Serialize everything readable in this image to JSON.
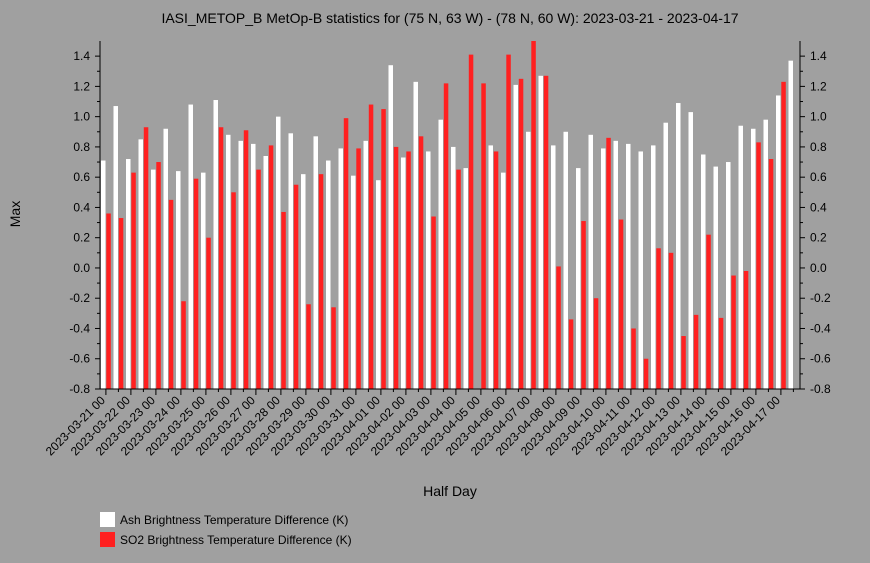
{
  "chart_data": {
    "type": "bar",
    "title": "IASI_METOP_B MetOp-B statistics for (75 N, 63 W) - (78 N, 60 W): 2023-03-21 - 2023-04-17",
    "xlabel": "Half Day",
    "ylabel": "Max",
    "ylim": [
      -0.8,
      1.5
    ],
    "yticks": [
      -0.8,
      -0.6,
      -0.4,
      -0.2,
      0.0,
      0.2,
      0.4,
      0.6,
      0.8,
      1.0,
      1.2,
      1.4
    ],
    "ytick_labels": [
      "-0.8",
      "-0.6",
      "-0.4",
      "-0.2",
      "0.0",
      "0.2",
      "0.4",
      "0.6",
      "0.8",
      "1.0",
      "1.2",
      "1.4"
    ],
    "grid": false,
    "legend_position": "bottom-left",
    "categories": [
      "2023-03-21 00",
      "2023-03-21 12",
      "2023-03-22 00",
      "2023-03-22 12",
      "2023-03-23 00",
      "2023-03-23 12",
      "2023-03-24 00",
      "2023-03-24 12",
      "2023-03-25 00",
      "2023-03-25 12",
      "2023-03-26 00",
      "2023-03-26 12",
      "2023-03-27 00",
      "2023-03-27 12",
      "2023-03-28 00",
      "2023-03-28 12",
      "2023-03-29 00",
      "2023-03-29 12",
      "2023-03-30 00",
      "2023-03-30 12",
      "2023-03-31 00",
      "2023-03-31 12",
      "2023-04-01 00",
      "2023-04-01 12",
      "2023-04-02 00",
      "2023-04-02 12",
      "2023-04-03 00",
      "2023-04-03 12",
      "2023-04-04 00",
      "2023-04-04 12",
      "2023-04-05 00",
      "2023-04-05 12",
      "2023-04-06 00",
      "2023-04-06 12",
      "2023-04-07 00",
      "2023-04-07 12",
      "2023-04-08 00",
      "2023-04-08 12",
      "2023-04-09 00",
      "2023-04-09 12",
      "2023-04-10 00",
      "2023-04-10 12",
      "2023-04-11 00",
      "2023-04-11 12",
      "2023-04-12 00",
      "2023-04-12 12",
      "2023-04-13 00",
      "2023-04-13 12",
      "2023-04-14 00",
      "2023-04-14 12",
      "2023-04-15 00",
      "2023-04-15 12",
      "2023-04-16 00",
      "2023-04-16 12",
      "2023-04-17 00",
      "2023-04-17 12"
    ],
    "xtick_labels": [
      "2023-03-21 00",
      "2023-03-22 00",
      "2023-03-23 00",
      "2023-03-24 00",
      "2023-03-25 00",
      "2023-03-26 00",
      "2023-03-27 00",
      "2023-03-28 00",
      "2023-03-29 00",
      "2023-03-30 00",
      "2023-03-31 00",
      "2023-04-01 00",
      "2023-04-02 00",
      "2023-04-03 00",
      "2023-04-04 00",
      "2023-04-05 00",
      "2023-04-06 00",
      "2023-04-07 00",
      "2023-04-08 00",
      "2023-04-09 00",
      "2023-04-10 00",
      "2023-04-11 00",
      "2023-04-12 00",
      "2023-04-13 00",
      "2023-04-14 00",
      "2023-04-15 00",
      "2023-04-16 00",
      "2023-04-17 00"
    ],
    "series": [
      {
        "name": "Ash Brightness Temperature Difference (K)",
        "color": "#ffffff",
        "values": [
          0.71,
          1.07,
          0.72,
          0.85,
          0.65,
          0.92,
          0.64,
          1.08,
          0.63,
          1.11,
          0.88,
          0.84,
          0.82,
          0.74,
          1.0,
          0.89,
          0.62,
          0.87,
          0.71,
          0.79,
          0.61,
          0.84,
          0.58,
          1.34,
          0.73,
          1.23,
          0.77,
          0.98,
          0.8,
          0.66,
          null,
          0.81,
          0.63,
          1.21,
          0.9,
          1.27,
          0.81,
          0.9,
          0.66,
          0.88,
          0.79,
          0.84,
          0.82,
          0.77,
          0.81,
          0.96,
          1.09,
          1.03,
          0.75,
          0.67,
          0.7,
          0.94,
          0.92,
          0.98,
          1.14,
          1.37
        ]
      },
      {
        "name": "SO2 Brightness Temperature Difference (K)",
        "color": "#ff2020",
        "values": [
          0.36,
          0.33,
          0.63,
          0.93,
          0.7,
          0.45,
          -0.22,
          0.59,
          0.2,
          0.93,
          0.5,
          0.91,
          0.65,
          0.81,
          0.37,
          0.55,
          -0.24,
          0.62,
          -0.26,
          0.99,
          0.79,
          1.08,
          1.05,
          0.8,
          0.77,
          0.87,
          0.34,
          1.22,
          0.65,
          1.41,
          1.22,
          0.77,
          1.41,
          1.25,
          1.52,
          1.27,
          0.01,
          -0.34,
          0.31,
          -0.2,
          0.86,
          0.32,
          -0.4,
          -0.6,
          0.13,
          0.1,
          -0.45,
          -0.31,
          0.22,
          -0.33,
          -0.05,
          -0.02,
          0.83,
          0.72,
          1.23,
          null
        ]
      }
    ]
  }
}
